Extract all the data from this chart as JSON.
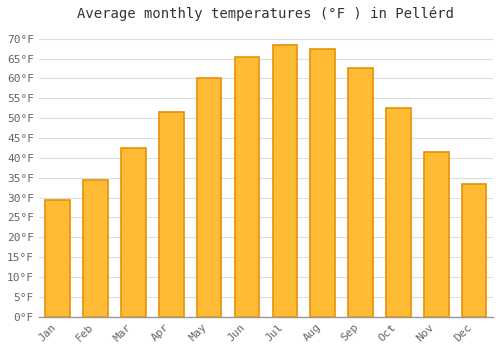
{
  "title": "Average monthly temperatures (°F ) in Pellérd",
  "months": [
    "Jan",
    "Feb",
    "Mar",
    "Apr",
    "May",
    "Jun",
    "Jul",
    "Aug",
    "Sep",
    "Oct",
    "Nov",
    "Dec"
  ],
  "values": [
    29.5,
    34.5,
    42.5,
    51.5,
    60.0,
    65.5,
    68.5,
    67.5,
    62.5,
    52.5,
    41.5,
    33.5
  ],
  "bar_color": "#FFBB33",
  "bar_edge_color": "#E8900A",
  "ylim": [
    0,
    73
  ],
  "yticks": [
    0,
    5,
    10,
    15,
    20,
    25,
    30,
    35,
    40,
    45,
    50,
    55,
    60,
    65,
    70
  ],
  "background_color": "#FFFFFF",
  "grid_color": "#DDDDDD",
  "title_fontsize": 10,
  "tick_fontsize": 8
}
